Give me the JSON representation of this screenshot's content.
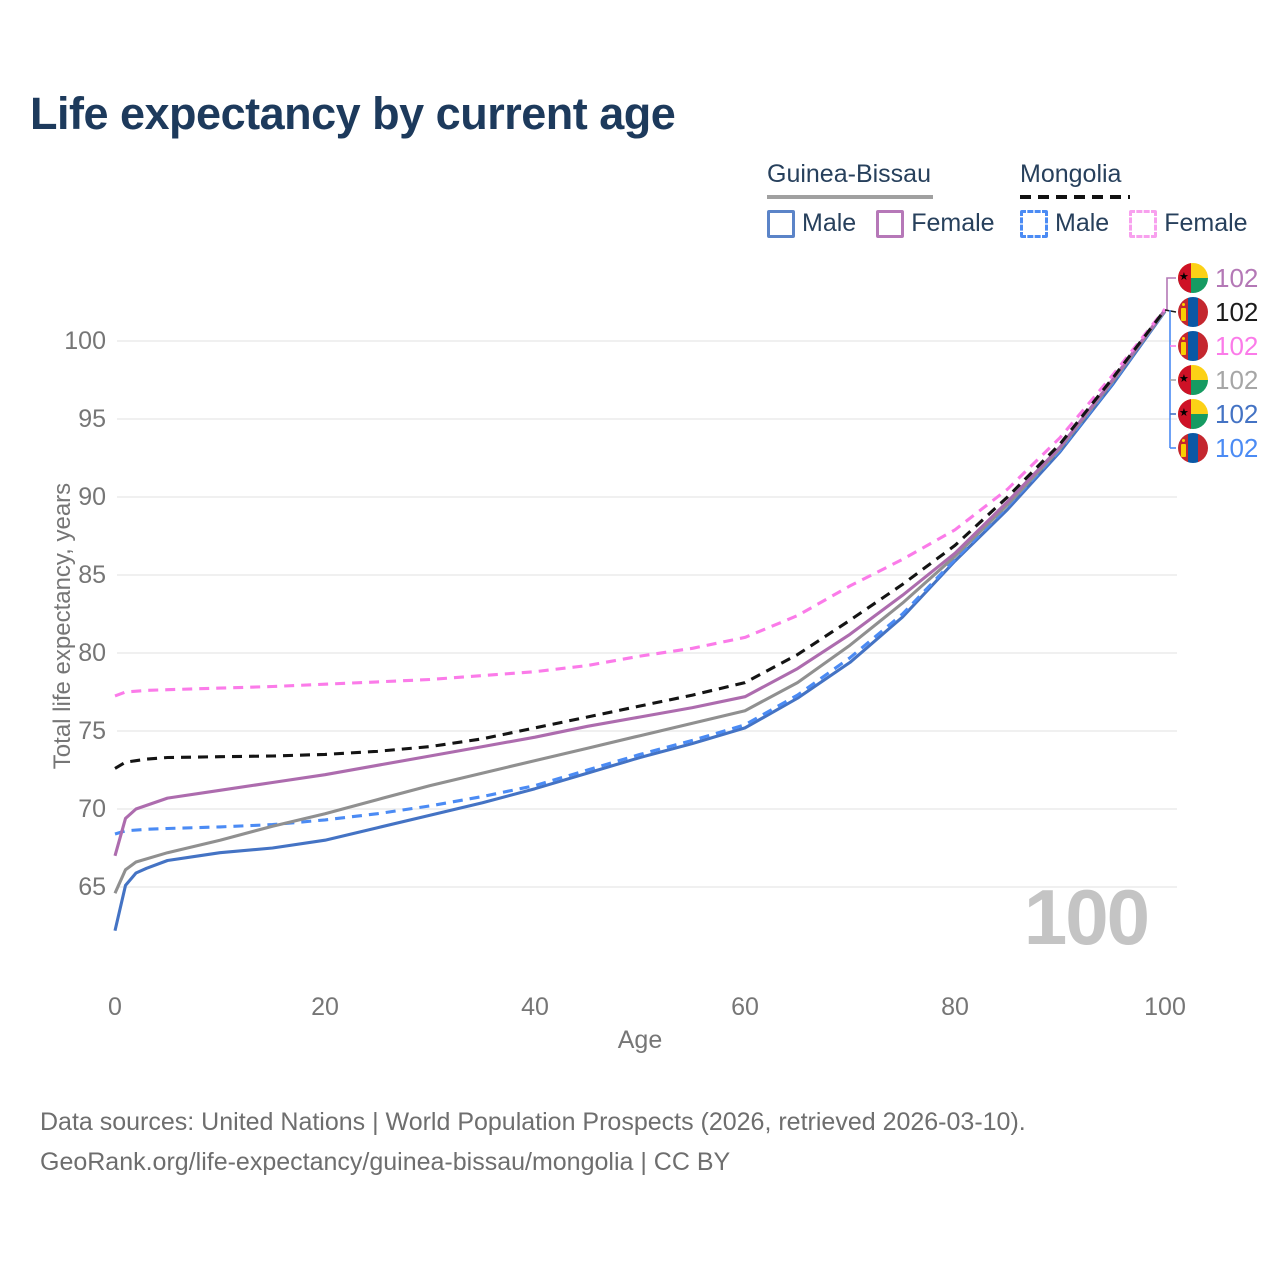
{
  "title": "Life expectancy by current age",
  "watermark": "100",
  "legend": {
    "groups": [
      {
        "label": "Guinea-Bissau",
        "line_style": "solid",
        "line_color": "#a0a0a0",
        "items": [
          {
            "label": "Male",
            "swatch_color": "#5b84c8",
            "swatch_style": "solid"
          },
          {
            "label": "Female",
            "swatch_color": "#b678b8",
            "swatch_style": "solid"
          }
        ]
      },
      {
        "label": "Mongolia",
        "line_style": "dashed",
        "line_color": "#111111",
        "items": [
          {
            "label": "Male",
            "swatch_color": "#4b8bf4",
            "swatch_style": "dashed"
          },
          {
            "label": "Female",
            "swatch_color": "#f8a0ee",
            "swatch_style": "dashed"
          }
        ]
      }
    ]
  },
  "chart_data": {
    "type": "line",
    "title": "Life expectancy by current age",
    "xlabel": "Age",
    "ylabel": "Total life expectancy, years",
    "xlim": [
      0,
      100
    ],
    "ylim": [
      62,
      103
    ],
    "x_ticks": [
      0,
      20,
      40,
      60,
      80,
      100
    ],
    "y_ticks": [
      65,
      70,
      75,
      80,
      85,
      90,
      95,
      100
    ],
    "grid": "horizontal",
    "legend_position": "top-right",
    "series": [
      {
        "name": "Guinea-Bissau Male",
        "country": "Guinea-Bissau",
        "sex": "Male",
        "style": "solid",
        "color": "#4473c4",
        "end_label": "102",
        "points": [
          [
            0,
            62.2
          ],
          [
            1,
            65.1
          ],
          [
            2,
            65.9
          ],
          [
            3,
            66.2
          ],
          [
            5,
            66.7
          ],
          [
            8,
            67.0
          ],
          [
            10,
            67.2
          ],
          [
            15,
            67.5
          ],
          [
            20,
            68.0
          ],
          [
            25,
            68.8
          ],
          [
            30,
            69.6
          ],
          [
            35,
            70.4
          ],
          [
            40,
            71.3
          ],
          [
            45,
            72.3
          ],
          [
            50,
            73.3
          ],
          [
            55,
            74.2
          ],
          [
            60,
            75.2
          ],
          [
            65,
            77.1
          ],
          [
            70,
            79.4
          ],
          [
            75,
            82.3
          ],
          [
            80,
            85.9
          ],
          [
            85,
            89.2
          ],
          [
            90,
            92.9
          ],
          [
            95,
            97.2
          ],
          [
            100,
            101.9
          ]
        ]
      },
      {
        "name": "Mongolia Male",
        "country": "Mongolia",
        "sex": "Male",
        "style": "dashed",
        "color": "#4b8bf4",
        "end_label": "102",
        "points": [
          [
            0,
            68.4
          ],
          [
            1,
            68.6
          ],
          [
            3,
            68.7
          ],
          [
            5,
            68.75
          ],
          [
            10,
            68.85
          ],
          [
            15,
            69.0
          ],
          [
            20,
            69.3
          ],
          [
            25,
            69.7
          ],
          [
            30,
            70.2
          ],
          [
            35,
            70.8
          ],
          [
            40,
            71.5
          ],
          [
            45,
            72.5
          ],
          [
            50,
            73.5
          ],
          [
            55,
            74.4
          ],
          [
            60,
            75.4
          ],
          [
            65,
            77.3
          ],
          [
            70,
            79.7
          ],
          [
            75,
            82.5
          ],
          [
            80,
            86.0
          ],
          [
            85,
            89.4
          ],
          [
            90,
            93.0
          ],
          [
            95,
            97.3
          ],
          [
            100,
            101.95
          ]
        ]
      },
      {
        "name": "Guinea-Bissau Both sexes",
        "country": "Guinea-Bissau",
        "sex": "Both",
        "style": "solid",
        "color": "#909090",
        "end_label": "102",
        "points": [
          [
            0,
            64.6
          ],
          [
            1,
            66.1
          ],
          [
            2,
            66.6
          ],
          [
            5,
            67.2
          ],
          [
            10,
            68.0
          ],
          [
            15,
            68.9
          ],
          [
            20,
            69.7
          ],
          [
            25,
            70.6
          ],
          [
            30,
            71.5
          ],
          [
            35,
            72.3
          ],
          [
            40,
            73.1
          ],
          [
            45,
            73.9
          ],
          [
            50,
            74.7
          ],
          [
            55,
            75.5
          ],
          [
            60,
            76.3
          ],
          [
            65,
            78.1
          ],
          [
            70,
            80.5
          ],
          [
            75,
            83.2
          ],
          [
            80,
            86.2
          ],
          [
            85,
            89.5
          ],
          [
            90,
            93.1
          ],
          [
            95,
            97.4
          ],
          [
            100,
            101.95
          ]
        ]
      },
      {
        "name": "Guinea-Bissau Female",
        "country": "Guinea-Bissau",
        "sex": "Female",
        "style": "solid",
        "color": "#ad6cae",
        "end_label": "102",
        "points": [
          [
            0,
            67.0
          ],
          [
            1,
            69.4
          ],
          [
            2,
            70.0
          ],
          [
            5,
            70.7
          ],
          [
            10,
            71.2
          ],
          [
            15,
            71.7
          ],
          [
            20,
            72.2
          ],
          [
            25,
            72.8
          ],
          [
            30,
            73.4
          ],
          [
            35,
            74.0
          ],
          [
            40,
            74.6
          ],
          [
            45,
            75.3
          ],
          [
            50,
            75.9
          ],
          [
            55,
            76.5
          ],
          [
            60,
            77.2
          ],
          [
            65,
            79.0
          ],
          [
            70,
            81.2
          ],
          [
            75,
            83.7
          ],
          [
            80,
            86.4
          ],
          [
            85,
            89.7
          ],
          [
            90,
            93.2
          ],
          [
            95,
            97.5
          ],
          [
            100,
            102.0
          ]
        ]
      },
      {
        "name": "Mongolia Female",
        "country": "Mongolia",
        "sex": "Female",
        "style": "dashed",
        "color": "#fb7be9",
        "end_label": "102",
        "points": [
          [
            0,
            77.25
          ],
          [
            1,
            77.5
          ],
          [
            3,
            77.6
          ],
          [
            5,
            77.65
          ],
          [
            10,
            77.75
          ],
          [
            15,
            77.85
          ],
          [
            20,
            78.0
          ],
          [
            25,
            78.15
          ],
          [
            30,
            78.3
          ],
          [
            35,
            78.55
          ],
          [
            40,
            78.8
          ],
          [
            45,
            79.2
          ],
          [
            50,
            79.8
          ],
          [
            55,
            80.3
          ],
          [
            60,
            81.0
          ],
          [
            65,
            82.4
          ],
          [
            70,
            84.3
          ],
          [
            75,
            86.0
          ],
          [
            80,
            87.9
          ],
          [
            85,
            90.5
          ],
          [
            90,
            93.8
          ],
          [
            95,
            97.8
          ],
          [
            100,
            102.05
          ]
        ]
      },
      {
        "name": "Mongolia Both sexes",
        "country": "Mongolia",
        "sex": "Both",
        "style": "dashed",
        "color": "#141414",
        "end_label": "102",
        "points": [
          [
            0,
            72.6
          ],
          [
            1,
            73.0
          ],
          [
            3,
            73.2
          ],
          [
            5,
            73.3
          ],
          [
            10,
            73.35
          ],
          [
            15,
            73.4
          ],
          [
            20,
            73.5
          ],
          [
            25,
            73.7
          ],
          [
            30,
            74.0
          ],
          [
            35,
            74.5
          ],
          [
            40,
            75.2
          ],
          [
            45,
            75.9
          ],
          [
            50,
            76.6
          ],
          [
            55,
            77.3
          ],
          [
            60,
            78.1
          ],
          [
            65,
            79.9
          ],
          [
            70,
            82.1
          ],
          [
            75,
            84.4
          ],
          [
            80,
            86.9
          ],
          [
            85,
            90.0
          ],
          [
            90,
            93.4
          ],
          [
            95,
            97.6
          ],
          [
            100,
            102.0
          ]
        ]
      }
    ]
  },
  "endpoints": [
    {
      "flag": "guinea-bissau-flag-icon",
      "value": "102",
      "color": "#b478b6"
    },
    {
      "flag": "mongolia-flag-icon",
      "value": "102",
      "color": "#1b1b1b"
    },
    {
      "flag": "mongolia-flag-icon",
      "value": "102",
      "color": "#fb7be9"
    },
    {
      "flag": "guinea-bissau-flag-icon",
      "value": "102",
      "color": "#a6a6a6"
    },
    {
      "flag": "guinea-bissau-flag-icon",
      "value": "102",
      "color": "#4473c4"
    },
    {
      "flag": "mongolia-flag-icon",
      "value": "102",
      "color": "#4b8bf4"
    }
  ],
  "colors": {
    "title": "#1d3a5c",
    "legend_text": "#27405c",
    "axis_text": "#767676",
    "gridline": "#ececec",
    "watermark": "#c4c4c4",
    "footer_text": "#6e6e6e"
  },
  "footer": {
    "line1": "Data sources: United Nations | World Population Prospects (2026, retrieved 2026-03-10).",
    "line2": "GeoRank.org/life-expectancy/guinea-bissau/mongolia | CC BY"
  }
}
